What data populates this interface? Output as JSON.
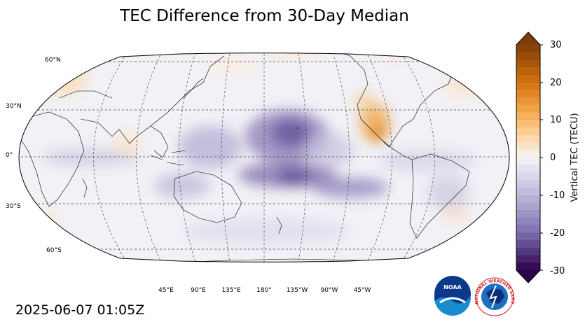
{
  "title": "TEC Difference from 30-Day Median",
  "timestamp": "2025-06-07 01:05Z",
  "map": {
    "projection": "Robinson",
    "central_longitude": 180,
    "gridlines": true,
    "lat_labels": [
      "60°N",
      "30°N",
      "0°",
      "30°S",
      "60°S"
    ],
    "lon_labels": [
      "45°E",
      "90°E",
      "135°E",
      "180°",
      "135°W",
      "90°W",
      "45°W"
    ]
  },
  "colorbar": {
    "label": "Vertical TEC (TECU)",
    "min": -30,
    "max": 30,
    "ticks": [
      "30",
      "20",
      "10",
      "0",
      "-10",
      "-20",
      "-30"
    ],
    "extend": "both",
    "colormap": "PuOr_r",
    "high_color": "#7f3b08",
    "mid_color": "#f7f7f7",
    "low_color": "#2d004b"
  },
  "logos": {
    "noaa_text": "NOAA",
    "nws_text": "NATIONAL WEATHER SERVICE"
  }
}
